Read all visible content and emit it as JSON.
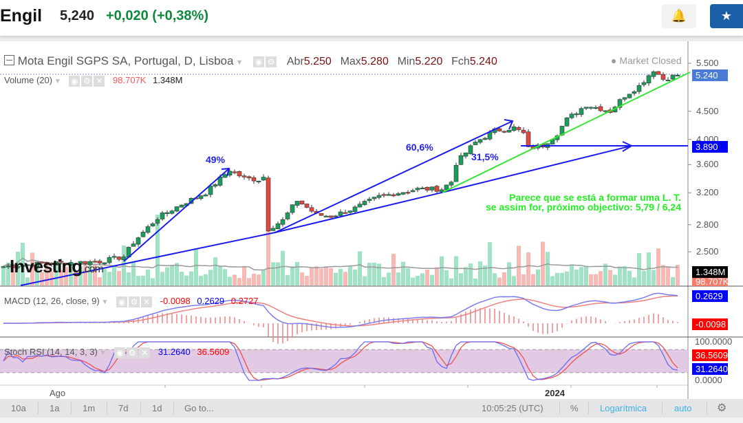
{
  "header": {
    "name": "Engil",
    "price": "5,240",
    "change": "+0,020 (+0,38%)",
    "alert_icon": "bell-plus-icon",
    "star_icon": "star-icon"
  },
  "chart": {
    "title": "Mota Engil SGPS SA, Portugal, D, Lisboa",
    "ohlc": {
      "open_label": "Abr",
      "open": "5.250",
      "high_label": "Max",
      "high": "5.280",
      "low_label": "Min",
      "low": "5.220",
      "close_label": "Fch",
      "close": "5.240"
    },
    "market_status": "Market Closed",
    "volume": {
      "label": "Volume (20)",
      "value": "98.707K",
      "ma": "1.348M"
    },
    "macd": {
      "label": "MACD (12, 26, close, 9)",
      "hist": "-0.0098",
      "macd": "0.2629",
      "signal": "0.2727"
    },
    "stoch": {
      "label": "Stoch RSI (14, 14, 3, 3)",
      "k": "31.2640",
      "d": "36.5609"
    },
    "price_axis": [
      "5.500",
      "4.500",
      "4.000",
      "3.600",
      "3.200",
      "2.800",
      "2.500"
    ],
    "price_axis_values": [
      5.5,
      4.5,
      4.0,
      3.6,
      3.2,
      2.8,
      2.5
    ],
    "tags": {
      "last": "5.240",
      "level": "3.890",
      "vol_ma": "1.348M",
      "vol": "98.707K",
      "macd": "0.2629",
      "hist": "-0.0098",
      "stoch_d": "36.5609",
      "stoch_k": "31.2640",
      "stoch_max": "100.0000",
      "stoch_min": "0.0000"
    },
    "time_axis": {
      "ago": "Ago",
      "year": "2024"
    },
    "annotations": {
      "a1": "49%",
      "a2": "60,6%",
      "a3": "31,5%",
      "note1": "Parece que se está a formar uma L. T.",
      "note2": "se assim for, próximo objectivo: 5,79 / 6,24"
    },
    "watermark": "Investing.com",
    "price_path": [
      [
        0,
        2.35
      ],
      [
        8,
        2.38
      ],
      [
        20,
        2.4
      ],
      [
        25,
        2.45
      ],
      [
        27,
        2.6
      ],
      [
        32,
        2.88
      ],
      [
        37,
        3.05
      ],
      [
        42,
        3.2
      ],
      [
        47,
        3.52
      ],
      [
        50,
        3.4
      ],
      [
        53,
        3.38
      ],
      [
        54,
        3.42
      ],
      [
        55,
        2.75
      ],
      [
        58,
        2.85
      ],
      [
        61,
        3.1
      ],
      [
        65,
        2.92
      ],
      [
        68,
        2.9
      ],
      [
        73,
        3.0
      ],
      [
        78,
        3.15
      ],
      [
        82,
        3.2
      ],
      [
        86,
        3.25
      ],
      [
        91,
        3.25
      ],
      [
        93,
        3.35
      ],
      [
        94,
        3.62
      ],
      [
        98,
        3.95
      ],
      [
        102,
        4.15
      ],
      [
        106,
        4.2
      ],
      [
        108,
        4.1
      ],
      [
        109,
        3.85
      ],
      [
        112,
        3.9
      ],
      [
        115,
        4.1
      ],
      [
        117,
        4.35
      ],
      [
        121,
        4.62
      ],
      [
        124,
        4.55
      ],
      [
        126,
        4.5
      ],
      [
        129,
        4.8
      ],
      [
        132,
        5.0
      ],
      [
        135,
        5.35
      ],
      [
        137,
        5.15
      ],
      [
        140,
        5.24
      ]
    ],
    "colors": {
      "up": "#26a96c",
      "down": "#ef5350",
      "blue": "#0000ff",
      "green": "#22ee22"
    }
  },
  "toolbar": {
    "ranges": [
      "10a",
      "1a",
      "1m",
      "7d",
      "1d"
    ],
    "goto": "Go to...",
    "time": "10:05:25 (UTC)",
    "percent": "%",
    "log": "Logarítmica",
    "auto": "auto",
    "settings_icon": "gear-icon"
  }
}
